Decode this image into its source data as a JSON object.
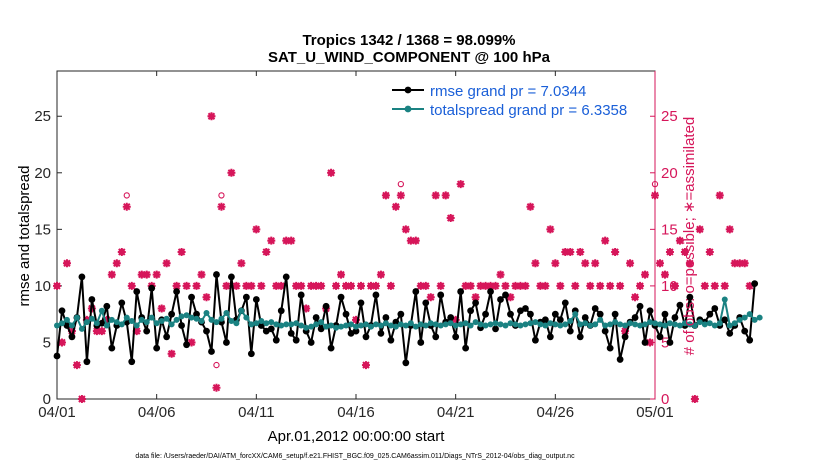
{
  "chart_data": {
    "type": "line",
    "title": "Tropics 1342 / 1368 = 98.099%",
    "subtitle": "SAT_U_WIND_COMPONENT @ 100 hPa",
    "xlabel": "Apr.01,2012 00:00:00 start",
    "ylabel_left": "rmse and totalspread",
    "ylabel_right": "# of obs: o=possible; ∗=assimilated",
    "ylim_left": [
      0,
      29
    ],
    "ylim_right": [
      0,
      29
    ],
    "xlim": [
      0,
      30
    ],
    "y_ticks_left": [
      "0",
      "5",
      "10",
      "15",
      "20",
      "25"
    ],
    "y_ticks_right": [
      "0",
      "5",
      "10",
      "15",
      "20",
      "25"
    ],
    "x_ticks": [
      {
        "x": 0,
        "label": "04/01"
      },
      {
        "x": 5,
        "label": "04/06"
      },
      {
        "x": 10,
        "label": "04/11"
      },
      {
        "x": 15,
        "label": "04/16"
      },
      {
        "x": 20,
        "label": "04/21"
      },
      {
        "x": 25,
        "label": "04/26"
      },
      {
        "x": 30,
        "label": "05/01"
      }
    ],
    "series": [
      {
        "name": "rmse grand pr = 7.0344",
        "color": "#000000",
        "x_start": 0,
        "x_step": 0.25,
        "values": [
          3.8,
          7.8,
          6.5,
          5.5,
          7.2,
          10.8,
          3.3,
          8.8,
          6.5,
          6.7,
          8.2,
          4.5,
          6.5,
          8.5,
          6.8,
          3.3,
          9.5,
          7.2,
          6.0,
          9.8,
          4.5,
          7.0,
          5.5,
          7.5,
          9.5,
          6.5,
          4.8,
          9.0,
          7.5,
          6.8,
          6.0,
          4.2,
          11.0,
          6.8,
          5.0,
          10.8,
          7.0,
          7.8,
          9.0,
          4.0,
          8.8,
          6.5,
          6.0,
          6.2,
          5.2,
          7.8,
          10.8,
          5.8,
          5.2,
          9.2,
          6.0,
          5.0,
          7.2,
          6.2,
          8.2,
          4.5,
          6.5,
          9.0,
          7.5,
          5.8,
          6.0,
          8.5,
          5.5,
          6.5,
          9.2,
          5.8,
          7.2,
          5.2,
          6.8,
          7.5,
          3.2,
          6.5,
          9.5,
          5.0,
          8.5,
          6.5,
          5.5,
          9.2,
          6.8,
          7.2,
          5.5,
          9.5,
          4.5,
          7.8,
          8.5,
          6.3,
          7.5,
          9.5,
          6.2,
          8.8,
          9.2,
          7.5,
          6.5,
          7.8,
          8.0,
          7.5,
          5.2,
          6.8,
          7.0,
          5.5,
          7.5,
          7.0,
          8.5,
          6.0,
          7.8,
          5.5,
          7.2,
          6.5,
          8.0,
          7.5,
          6.0,
          4.5,
          7.5,
          3.5,
          5.5,
          6.8,
          7.2,
          8.2,
          5.0,
          7.8,
          6.5,
          5.5,
          7.5,
          5.0,
          7.2,
          8.3,
          6.5,
          9.0,
          6.5,
          7.0,
          6.8,
          7.5,
          8.0,
          6.5,
          7.0,
          5.8,
          6.5,
          7.2,
          6.0,
          5.2,
          10.2
        ]
      },
      {
        "name": "totalspread grand pr = 6.3358",
        "color": "#1a8282",
        "x_start": 0,
        "x_step": 0.25,
        "values": [
          6.5,
          6.7,
          7.0,
          6.5,
          7.2,
          6.2,
          6.8,
          7.1,
          6.7,
          7.8,
          6.5,
          7.0,
          6.8,
          6.6,
          7.2,
          6.9,
          6.5,
          7.0,
          6.8,
          7.2,
          6.7,
          6.9,
          7.1,
          6.6,
          7.0,
          7.3,
          7.4,
          7.2,
          7.1,
          6.9,
          7.6,
          7.0,
          6.8,
          7.1,
          7.6,
          6.9,
          6.7,
          7.8,
          7.2,
          6.6,
          6.7,
          6.9,
          6.7,
          6.8,
          6.6,
          6.5,
          6.6,
          6.6,
          6.7,
          6.5,
          6.3,
          6.4,
          6.6,
          6.8,
          6.4,
          6.5,
          6.3,
          6.4,
          6.5,
          6.6,
          6.4,
          6.5,
          6.6,
          6.4,
          6.6,
          6.5,
          6.7,
          6.5,
          6.4,
          6.6,
          6.5,
          6.7,
          6.4,
          6.6,
          6.5,
          6.7,
          6.6,
          6.5,
          6.6,
          6.7,
          6.5,
          6.6,
          6.7,
          6.5,
          6.8,
          6.6,
          6.5,
          6.6,
          6.7,
          6.6,
          6.5,
          6.7,
          6.6,
          6.5,
          6.6,
          6.7,
          6.8,
          6.6,
          6.5,
          6.7,
          6.6,
          6.5,
          6.6,
          6.9,
          7.5,
          6.6,
          6.7,
          6.5,
          6.6,
          7.0,
          6.5,
          6.6,
          6.8,
          6.6,
          6.5,
          6.7,
          6.6,
          6.5,
          6.6,
          6.8,
          6.7,
          6.6,
          6.5,
          6.7,
          6.6,
          6.5,
          6.7,
          6.6,
          6.5,
          6.8,
          6.6,
          6.7,
          6.5,
          6.7,
          8.8,
          6.5,
          6.7,
          7.0,
          7.2,
          7.5,
          7.0,
          7.2
        ]
      }
    ],
    "obs_assimilated": {
      "color": "#d6165a",
      "x_start": 0,
      "x_step": 0.25,
      "values": [
        10,
        5,
        12,
        6,
        3,
        0,
        7,
        8,
        6,
        6,
        7,
        11,
        12,
        13,
        17,
        10,
        6,
        11,
        11,
        10,
        11,
        8,
        12,
        4,
        10,
        13,
        10,
        5,
        10,
        11,
        9,
        25,
        1,
        17,
        10,
        20,
        10,
        12,
        10,
        10,
        15,
        10,
        13,
        14,
        10,
        10,
        14,
        14,
        10,
        10,
        8,
        10,
        10,
        10,
        8,
        20,
        10,
        11,
        10,
        10,
        7,
        10,
        3,
        10,
        10,
        11,
        18,
        10,
        17,
        18,
        15,
        14,
        14,
        10,
        10,
        9,
        18,
        10,
        18,
        16,
        7,
        19,
        10,
        10,
        9,
        10,
        10,
        10,
        10,
        11,
        10,
        9,
        10,
        10,
        10,
        17,
        12,
        10,
        10,
        15,
        12,
        10,
        13,
        13,
        10,
        13,
        12,
        10,
        12,
        10,
        14,
        10,
        13,
        10,
        6,
        12,
        9,
        10,
        11,
        5,
        18,
        12,
        11,
        13,
        10,
        14,
        13,
        12,
        0,
        15,
        10,
        13,
        10,
        18,
        10,
        15,
        12,
        12,
        12,
        10
      ]
    },
    "obs_possible": {
      "color": "#d6165a",
      "x_start": 0,
      "x_step": 0.25,
      "values": [
        10,
        5,
        12,
        6,
        3,
        0,
        7,
        8,
        6,
        6,
        7,
        11,
        12,
        13,
        18,
        10,
        6,
        11,
        11,
        10,
        11,
        8,
        12,
        4,
        10,
        13,
        10,
        5,
        10,
        11,
        9,
        25,
        3,
        18,
        10,
        20,
        10,
        12,
        10,
        10,
        15,
        10,
        13,
        14,
        10,
        10,
        14,
        14,
        10,
        10,
        8,
        10,
        10,
        10,
        8,
        20,
        10,
        11,
        10,
        10,
        7,
        10,
        3,
        10,
        10,
        11,
        18,
        10,
        17,
        19,
        15,
        14,
        14,
        10,
        10,
        9,
        18,
        10,
        18,
        16,
        7,
        19,
        10,
        10,
        9,
        10,
        10,
        10,
        10,
        11,
        10,
        9,
        10,
        10,
        10,
        17,
        12,
        10,
        10,
        15,
        12,
        10,
        13,
        13,
        10,
        13,
        12,
        10,
        12,
        10,
        14,
        10,
        13,
        10,
        6,
        12,
        9,
        10,
        11,
        5,
        19,
        12,
        11,
        13,
        10,
        14,
        13,
        12,
        0,
        15,
        10,
        13,
        10,
        18,
        10,
        15,
        12,
        12,
        12,
        10
      ]
    },
    "legend": [
      "rmse grand pr = 7.0344",
      "totalspread grand pr = 6.3358"
    ],
    "legend_placement": "top-right"
  },
  "footnote": "data file: /Users/raeder/DAI/ATM_forcXX/CAM6_setup/f.e21.FHIST_BGC.f09_025.CAM6assim.011/Diags_NTrS_2012-04/obs_diag_output.nc"
}
